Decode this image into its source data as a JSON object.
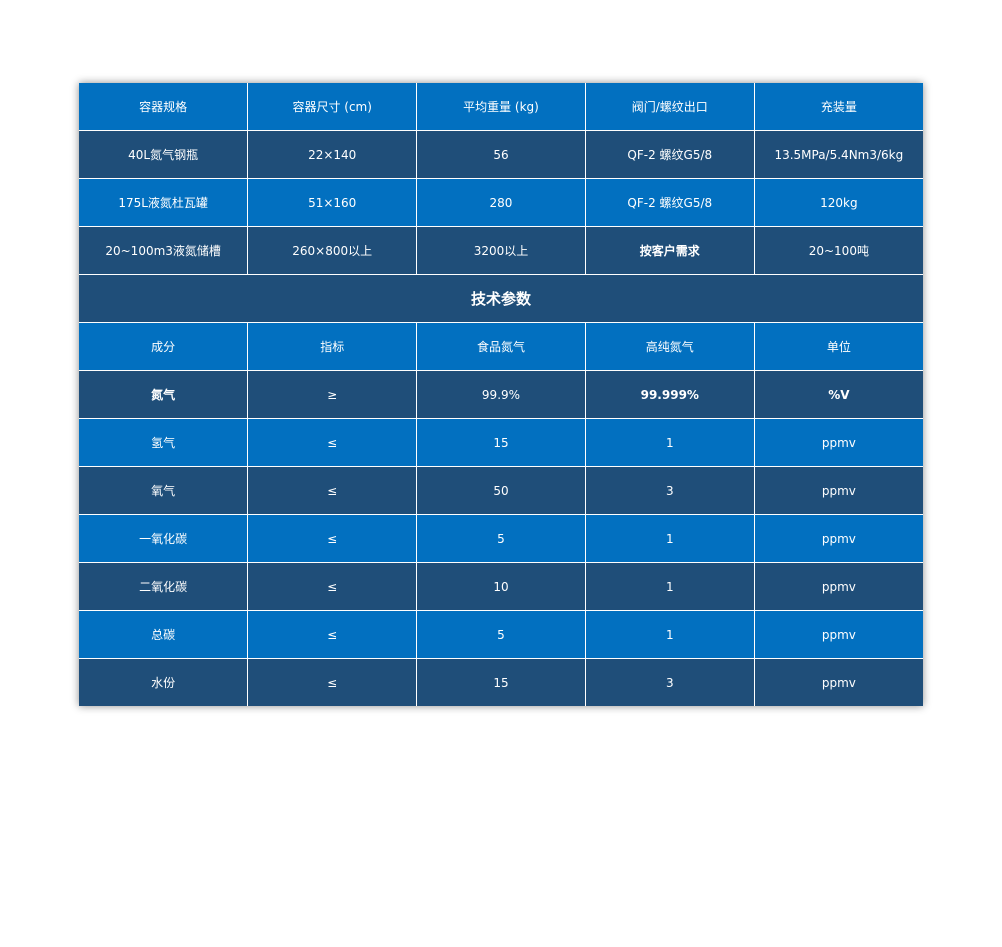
{
  "colors": {
    "blue": "#0270c0",
    "dark": "#1f4e79"
  },
  "containers": {
    "headers": [
      "容器规格",
      "容器尺寸 (cm)",
      "平均重量 (kg)",
      "阀门/螺纹出口",
      "充装量"
    ],
    "rows": [
      [
        "40L氮气钢瓶",
        "22×140",
        "56",
        "QF-2 螺纹G5/8",
        "13.5MPa/5.4Nm3/6kg"
      ],
      [
        "175L液氮杜瓦罐",
        "51×160",
        "280",
        "QF-2 螺纹G5/8",
        "120kg"
      ],
      [
        "20~100m3液氮储槽",
        "260×800以上",
        "3200以上",
        "按客户需求",
        "20~100吨"
      ]
    ]
  },
  "specs": {
    "title": "技术参数",
    "headers": [
      "成分",
      "指标",
      "食品氮气",
      "高纯氮气",
      "单位"
    ],
    "rows": [
      [
        "氮气",
        "≥",
        "99.9%",
        "99.999%",
        "%V"
      ],
      [
        "氢气",
        "≤",
        "15",
        "1",
        "ppmv"
      ],
      [
        "氧气",
        "≤",
        "50",
        "3",
        "ppmv"
      ],
      [
        "一氧化碳",
        "≤",
        "5",
        "1",
        "ppmv"
      ],
      [
        "二氧化碳",
        "≤",
        "10",
        "1",
        "ppmv"
      ],
      [
        "总碳",
        "≤",
        "5",
        "1",
        "ppmv"
      ],
      [
        "水份",
        "≤",
        "15",
        "3",
        "ppmv"
      ]
    ]
  }
}
